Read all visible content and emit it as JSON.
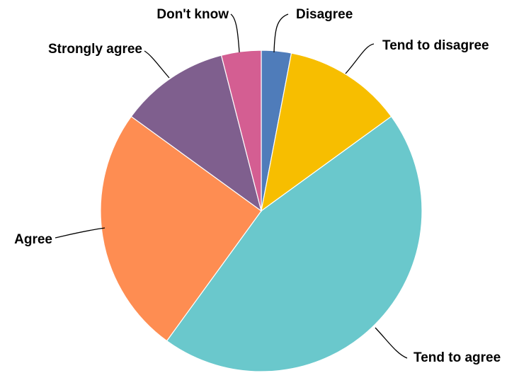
{
  "chart_data": {
    "type": "pie",
    "title": "",
    "slices": [
      {
        "label": "Disagree",
        "value": 3,
        "color": "#4f7cba"
      },
      {
        "label": "Tend to disagree",
        "value": 12,
        "color": "#f7be00"
      },
      {
        "label": "Tend to agree",
        "value": 45,
        "color": "#6ac8cc"
      },
      {
        "label": "Agree",
        "value": 25,
        "color": "#fe8d52"
      },
      {
        "label": "Strongly agree",
        "value": 11,
        "color": "#7f5f8e"
      },
      {
        "label": "Don't know",
        "value": 4,
        "color": "#d45e92"
      }
    ],
    "legend": "none",
    "labels_on_chart": true
  }
}
